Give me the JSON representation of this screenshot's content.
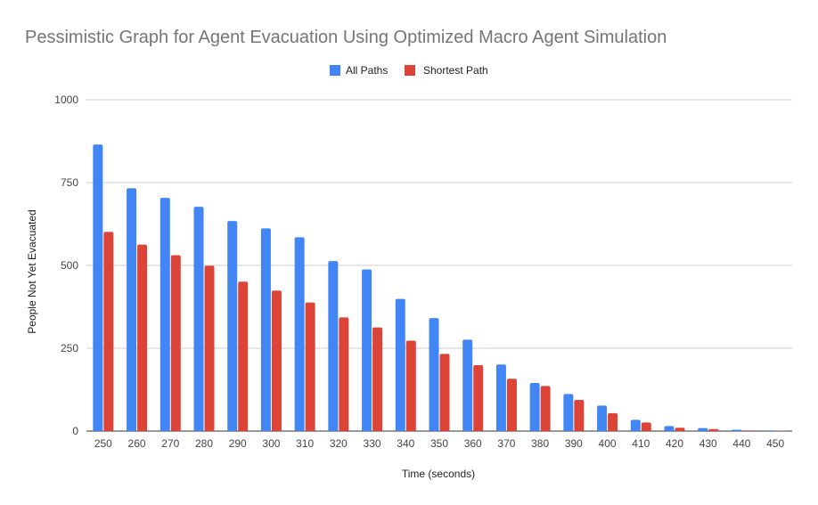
{
  "chart_data": {
    "type": "bar",
    "title": "Pessimistic Graph for Agent Evacuation Using Optimized Macro Agent Simulation",
    "xlabel": "Time (seconds)",
    "ylabel": "People Not Yet Evacuated",
    "ylim": [
      0,
      1000
    ],
    "yticks": [
      "0",
      "250",
      "500",
      "750",
      "1000"
    ],
    "grid": true,
    "legend_position": "top",
    "categories": [
      "250",
      "260",
      "270",
      "280",
      "290",
      "300",
      "310",
      "320",
      "330",
      "340",
      "350",
      "360",
      "370",
      "380",
      "390",
      "400",
      "410",
      "420",
      "430",
      "440",
      "450"
    ],
    "series": [
      {
        "name": "All Paths",
        "color": "#4285f4",
        "values": [
          865,
          733,
          704,
          677,
          634,
          612,
          585,
          513,
          488,
          399,
          341,
          276,
          201,
          145,
          112,
          77,
          34,
          15,
          9,
          4,
          2
        ]
      },
      {
        "name": "Shortest Path",
        "color": "#db4437",
        "values": [
          601,
          563,
          531,
          499,
          451,
          424,
          388,
          343,
          313,
          273,
          233,
          199,
          158,
          136,
          94,
          54,
          26,
          10,
          6,
          2,
          1
        ]
      }
    ]
  }
}
